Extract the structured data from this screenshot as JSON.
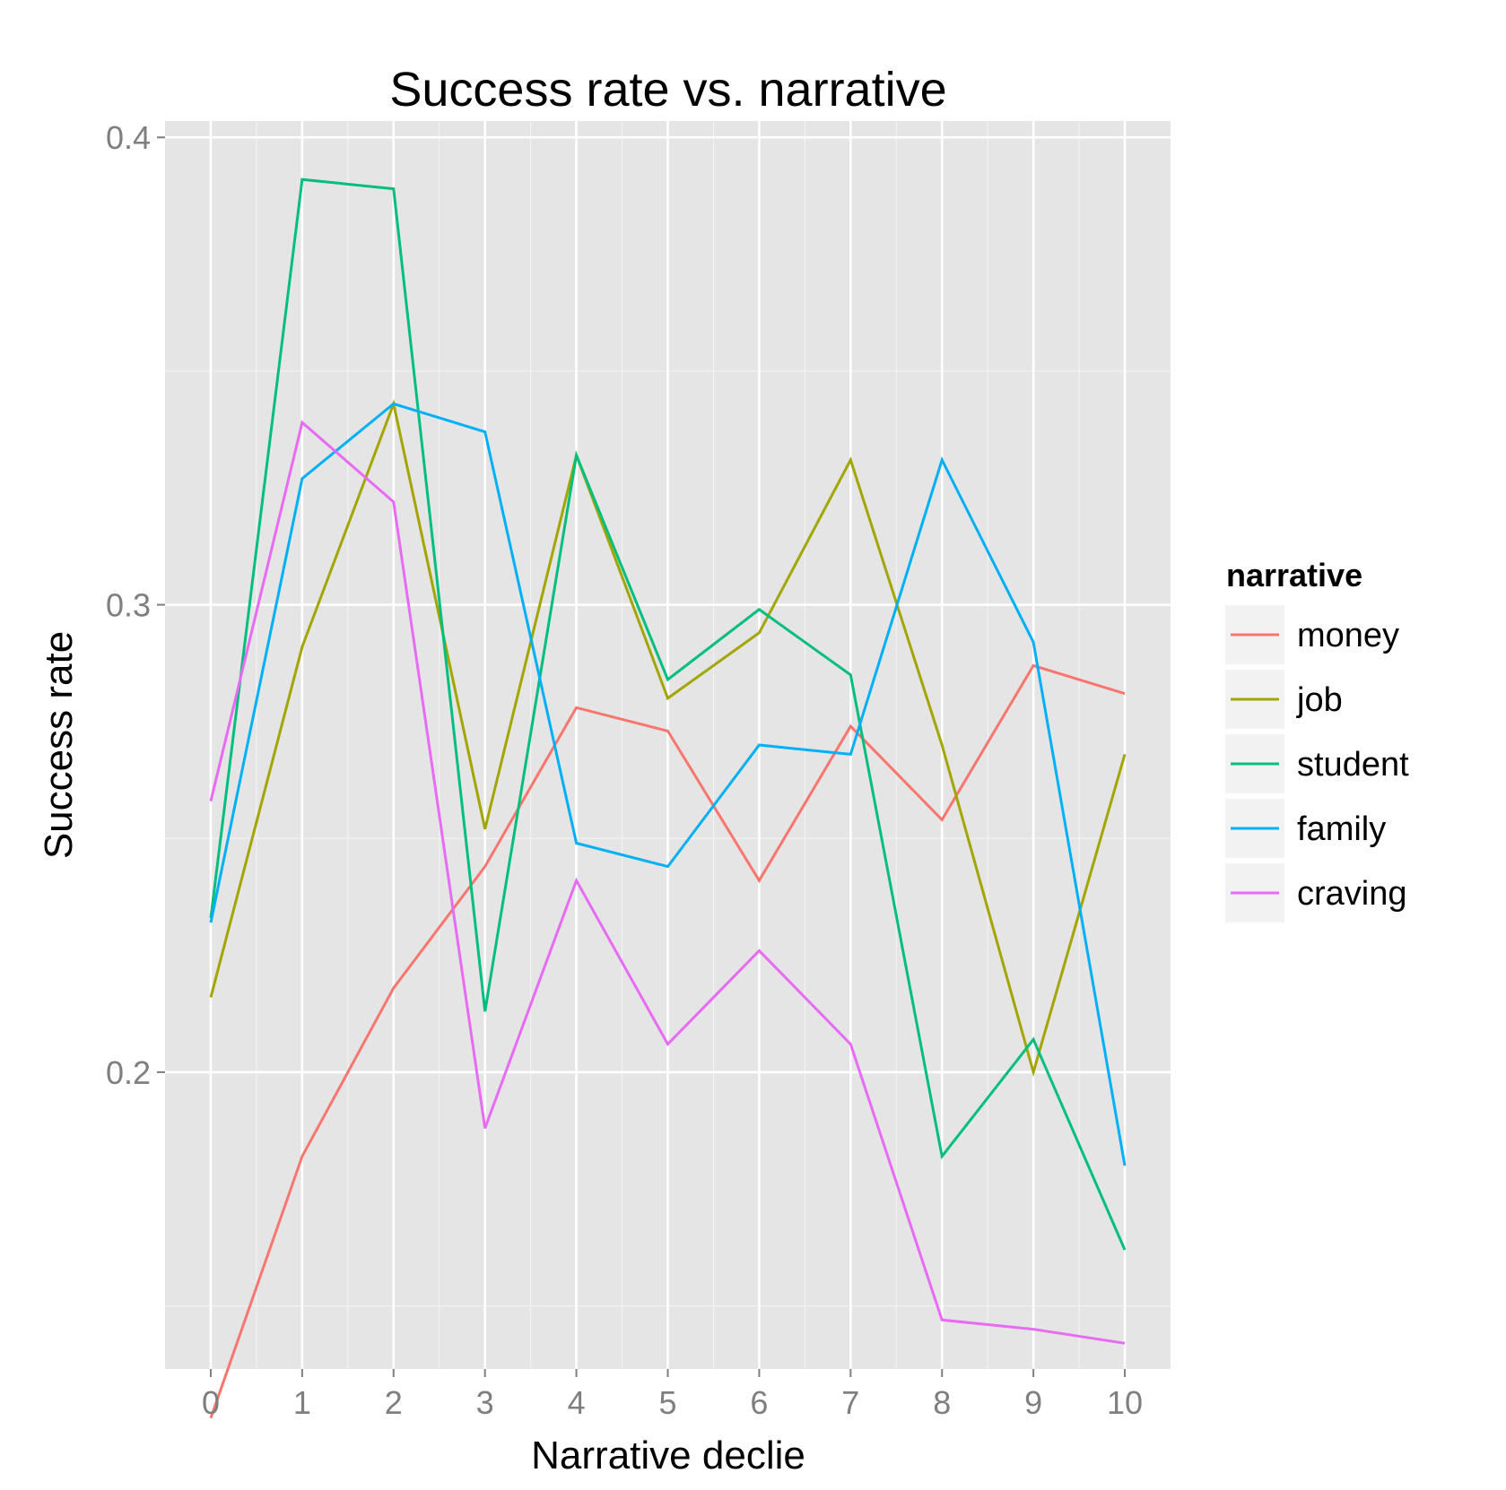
{
  "chart_data": {
    "type": "line",
    "title": "Success rate vs. narrative",
    "xlabel": "Narrative declie",
    "ylabel": "Success rate",
    "x": [
      0,
      1,
      2,
      3,
      4,
      5,
      6,
      7,
      8,
      9,
      10
    ],
    "xticks": [
      "0",
      "1",
      "2",
      "3",
      "4",
      "5",
      "6",
      "7",
      "8",
      "9",
      "10"
    ],
    "xlim": [
      -0.5,
      10.5
    ],
    "yticks": [
      0.2,
      0.3,
      0.4
    ],
    "ytick_labels": [
      "0.2",
      "0.3",
      "0.4"
    ],
    "ylim": [
      0.1365,
      0.4035
    ],
    "grid": true,
    "legend_title": "narrative",
    "legend_position": "right",
    "series": [
      {
        "name": "money",
        "color": "#F8766D",
        "values": [
          0.126,
          0.182,
          0.218,
          0.244,
          0.278,
          0.273,
          0.241,
          0.274,
          0.254,
          0.287,
          0.281
        ]
      },
      {
        "name": "job",
        "color": "#A3A500",
        "values": [
          0.216,
          0.291,
          0.343,
          0.252,
          0.332,
          0.28,
          0.294,
          0.331,
          0.27,
          0.2,
          0.268
        ]
      },
      {
        "name": "student",
        "color": "#00BF7D",
        "values": [
          0.233,
          0.391,
          0.389,
          0.213,
          0.332,
          0.284,
          0.299,
          0.285,
          0.182,
          0.207,
          0.162
        ]
      },
      {
        "name": "family",
        "color": "#00B0F6",
        "values": [
          0.232,
          0.327,
          0.343,
          0.337,
          0.249,
          0.244,
          0.27,
          0.268,
          0.331,
          0.292,
          0.18
        ]
      },
      {
        "name": "craving",
        "color": "#E76BF3",
        "values": [
          0.258,
          0.339,
          0.322,
          0.188,
          0.241,
          0.206,
          0.226,
          0.206,
          0.147,
          0.145,
          0.142
        ]
      }
    ]
  }
}
